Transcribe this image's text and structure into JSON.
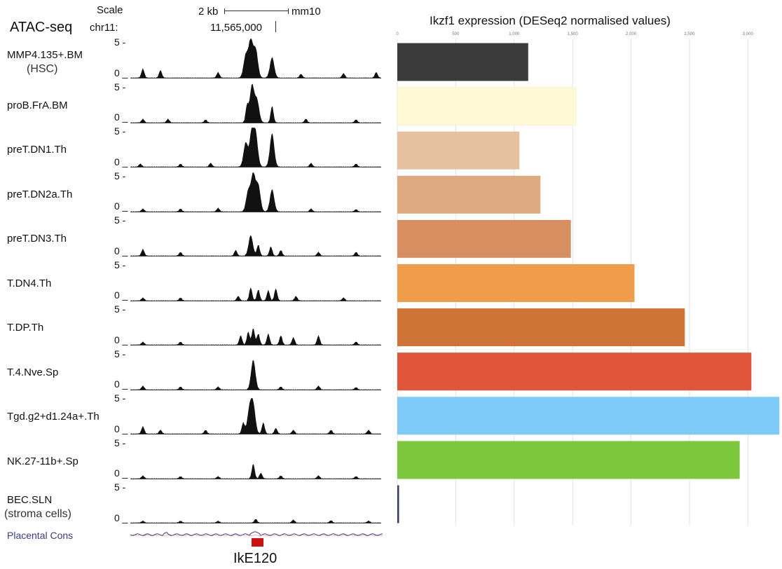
{
  "header": {
    "scale_label": "Scale",
    "scale_bar": "2 kb",
    "genome": "mm10",
    "assay": "ATAC-seq",
    "chrom": "chr11:",
    "position": "11,565,000"
  },
  "tracks": [
    {
      "name": "MMP4.135+.BM",
      "sub": "(HSC)",
      "ymax": "5 -",
      "ymin": "0 _",
      "peaks": [
        [
          0.05,
          0.25
        ],
        [
          0.12,
          0.2
        ],
        [
          0.35,
          0.15
        ],
        [
          0.46,
          0.6
        ],
        [
          0.48,
          1.0
        ],
        [
          0.5,
          0.75
        ],
        [
          0.565,
          0.55
        ],
        [
          0.68,
          0.1
        ],
        [
          0.85,
          0.12
        ],
        [
          0.98,
          0.15
        ]
      ]
    },
    {
      "name": "proB.FrA.BM",
      "sub": "",
      "ymax": "5 -",
      "ymin": "0 _",
      "peaks": [
        [
          0.05,
          0.1
        ],
        [
          0.15,
          0.1
        ],
        [
          0.3,
          0.08
        ],
        [
          0.465,
          0.45
        ],
        [
          0.485,
          1.0
        ],
        [
          0.505,
          0.6
        ],
        [
          0.565,
          0.45
        ],
        [
          0.7,
          0.1
        ],
        [
          0.9,
          0.08
        ]
      ]
    },
    {
      "name": "preT.DN1.Th",
      "sub": "",
      "ymax": "5 -",
      "ymin": "0 _",
      "peaks": [
        [
          0.04,
          0.08
        ],
        [
          0.2,
          0.08
        ],
        [
          0.32,
          0.1
        ],
        [
          0.46,
          0.65
        ],
        [
          0.485,
          1.0
        ],
        [
          0.5,
          0.8
        ],
        [
          0.565,
          0.9
        ],
        [
          0.72,
          0.1
        ],
        [
          0.9,
          0.08
        ]
      ]
    },
    {
      "name": "preT.DN2a.Th",
      "sub": "",
      "ymax": "5 -",
      "ymin": "0 _",
      "peaks": [
        [
          0.05,
          0.08
        ],
        [
          0.2,
          0.08
        ],
        [
          0.35,
          0.1
        ],
        [
          0.47,
          0.55
        ],
        [
          0.49,
          1.0
        ],
        [
          0.51,
          0.7
        ],
        [
          0.565,
          0.6
        ],
        [
          0.72,
          0.08
        ],
        [
          0.9,
          0.06
        ]
      ]
    },
    {
      "name": "preT.DN3.Th",
      "sub": "",
      "ymax": "5 -",
      "ymin": "0 _",
      "peaks": [
        [
          0.05,
          0.18
        ],
        [
          0.2,
          0.1
        ],
        [
          0.42,
          0.15
        ],
        [
          0.48,
          0.55
        ],
        [
          0.51,
          0.3
        ],
        [
          0.56,
          0.25
        ],
        [
          0.6,
          0.15
        ],
        [
          0.75,
          0.1
        ],
        [
          0.9,
          0.1
        ]
      ]
    },
    {
      "name": "T.DN4.Th",
      "sub": "",
      "ymax": "5 -",
      "ymin": "0 _",
      "peaks": [
        [
          0.05,
          0.08
        ],
        [
          0.2,
          0.08
        ],
        [
          0.43,
          0.12
        ],
        [
          0.48,
          0.35
        ],
        [
          0.51,
          0.3
        ],
        [
          0.55,
          0.28
        ],
        [
          0.58,
          0.32
        ],
        [
          0.66,
          0.12
        ],
        [
          0.85,
          0.08
        ]
      ]
    },
    {
      "name": "T.DP.Th",
      "sub": "",
      "ymax": "5 -",
      "ymin": "0 _",
      "peaks": [
        [
          0.05,
          0.08
        ],
        [
          0.2,
          0.08
        ],
        [
          0.44,
          0.25
        ],
        [
          0.47,
          0.35
        ],
        [
          0.49,
          0.45
        ],
        [
          0.51,
          0.3
        ],
        [
          0.55,
          0.3
        ],
        [
          0.6,
          0.25
        ],
        [
          0.65,
          0.2
        ],
        [
          0.75,
          0.25
        ],
        [
          0.9,
          0.08
        ]
      ]
    },
    {
      "name": "T.4.Nve.Sp",
      "sub": "",
      "ymax": "5 -",
      "ymin": "0 _",
      "peaks": [
        [
          0.05,
          0.1
        ],
        [
          0.2,
          0.08
        ],
        [
          0.35,
          0.08
        ],
        [
          0.49,
          0.8
        ],
        [
          0.6,
          0.08
        ],
        [
          0.75,
          0.1
        ],
        [
          0.9,
          0.06
        ]
      ]
    },
    {
      "name": "Tgd.g2+d1.24a+.Th",
      "sub": "",
      "ymax": "5 -",
      "ymin": "0 _",
      "peaks": [
        [
          0.05,
          0.2
        ],
        [
          0.12,
          0.1
        ],
        [
          0.3,
          0.1
        ],
        [
          0.45,
          0.3
        ],
        [
          0.475,
          0.65
        ],
        [
          0.49,
          0.75
        ],
        [
          0.53,
          0.3
        ],
        [
          0.58,
          0.15
        ],
        [
          0.65,
          0.1
        ],
        [
          0.8,
          0.1
        ],
        [
          0.95,
          0.1
        ]
      ]
    },
    {
      "name": "NK.27-11b+.Sp",
      "sub": "",
      "ymax": "5 -",
      "ymin": "0 _",
      "peaks": [
        [
          0.05,
          0.08
        ],
        [
          0.2,
          0.06
        ],
        [
          0.35,
          0.06
        ],
        [
          0.49,
          0.4
        ],
        [
          0.52,
          0.15
        ],
        [
          0.6,
          0.08
        ],
        [
          0.75,
          0.08
        ],
        [
          0.9,
          0.06
        ]
      ]
    },
    {
      "name": "BEC.SLN",
      "sub": "(stroma cells)",
      "ymax": "5 -",
      "ymin": "0 _",
      "peaks": [
        [
          0.05,
          0.05
        ],
        [
          0.2,
          0.05
        ],
        [
          0.35,
          0.05
        ],
        [
          0.5,
          0.1
        ],
        [
          0.65,
          0.08
        ],
        [
          0.8,
          0.06
        ],
        [
          0.95,
          0.05
        ]
      ]
    }
  ],
  "cons_label": "Placental Cons",
  "element_label": "IkE120",
  "colors": {
    "track_fill": "#111111",
    "element": "#cc1111",
    "cons": "#3a3a8a"
  },
  "chart_data": {
    "type": "bar",
    "orientation": "horizontal",
    "title": "Ikzf1 expression (DESeq2 normalised values)",
    "categories": [
      "MMP4.135+.BM",
      "proB.FrA.BM",
      "preT.DN1.Th",
      "preT.DN2a.Th",
      "preT.DN3.Th",
      "T.DN4.Th",
      "T.DP.Th",
      "T.4.Nve.Sp",
      "Tgd.g2+d1.24a+.Th",
      "NK.27-11b+.Sp",
      "BEC.SLN"
    ],
    "values": [
      1120,
      1530,
      1045,
      1225,
      1485,
      2030,
      2460,
      3030,
      3270,
      2930,
      15
    ],
    "colors": [
      "#3b3b3b",
      "#fff9d4",
      "#e6c1a1",
      "#ddaa7f",
      "#d78f62",
      "#f09d4b",
      "#cf7434",
      "#df563a",
      "#7ecbf7",
      "#7dc73d",
      "#3a3a6a"
    ],
    "xlim": [
      0,
      3250
    ],
    "ticks": [
      "0",
      "500",
      "1,000",
      "1,500",
      "2,000",
      "2,500",
      "3,000"
    ],
    "tick_values": [
      0,
      500,
      1000,
      1500,
      2000,
      2500,
      3000
    ],
    "grid": true
  }
}
